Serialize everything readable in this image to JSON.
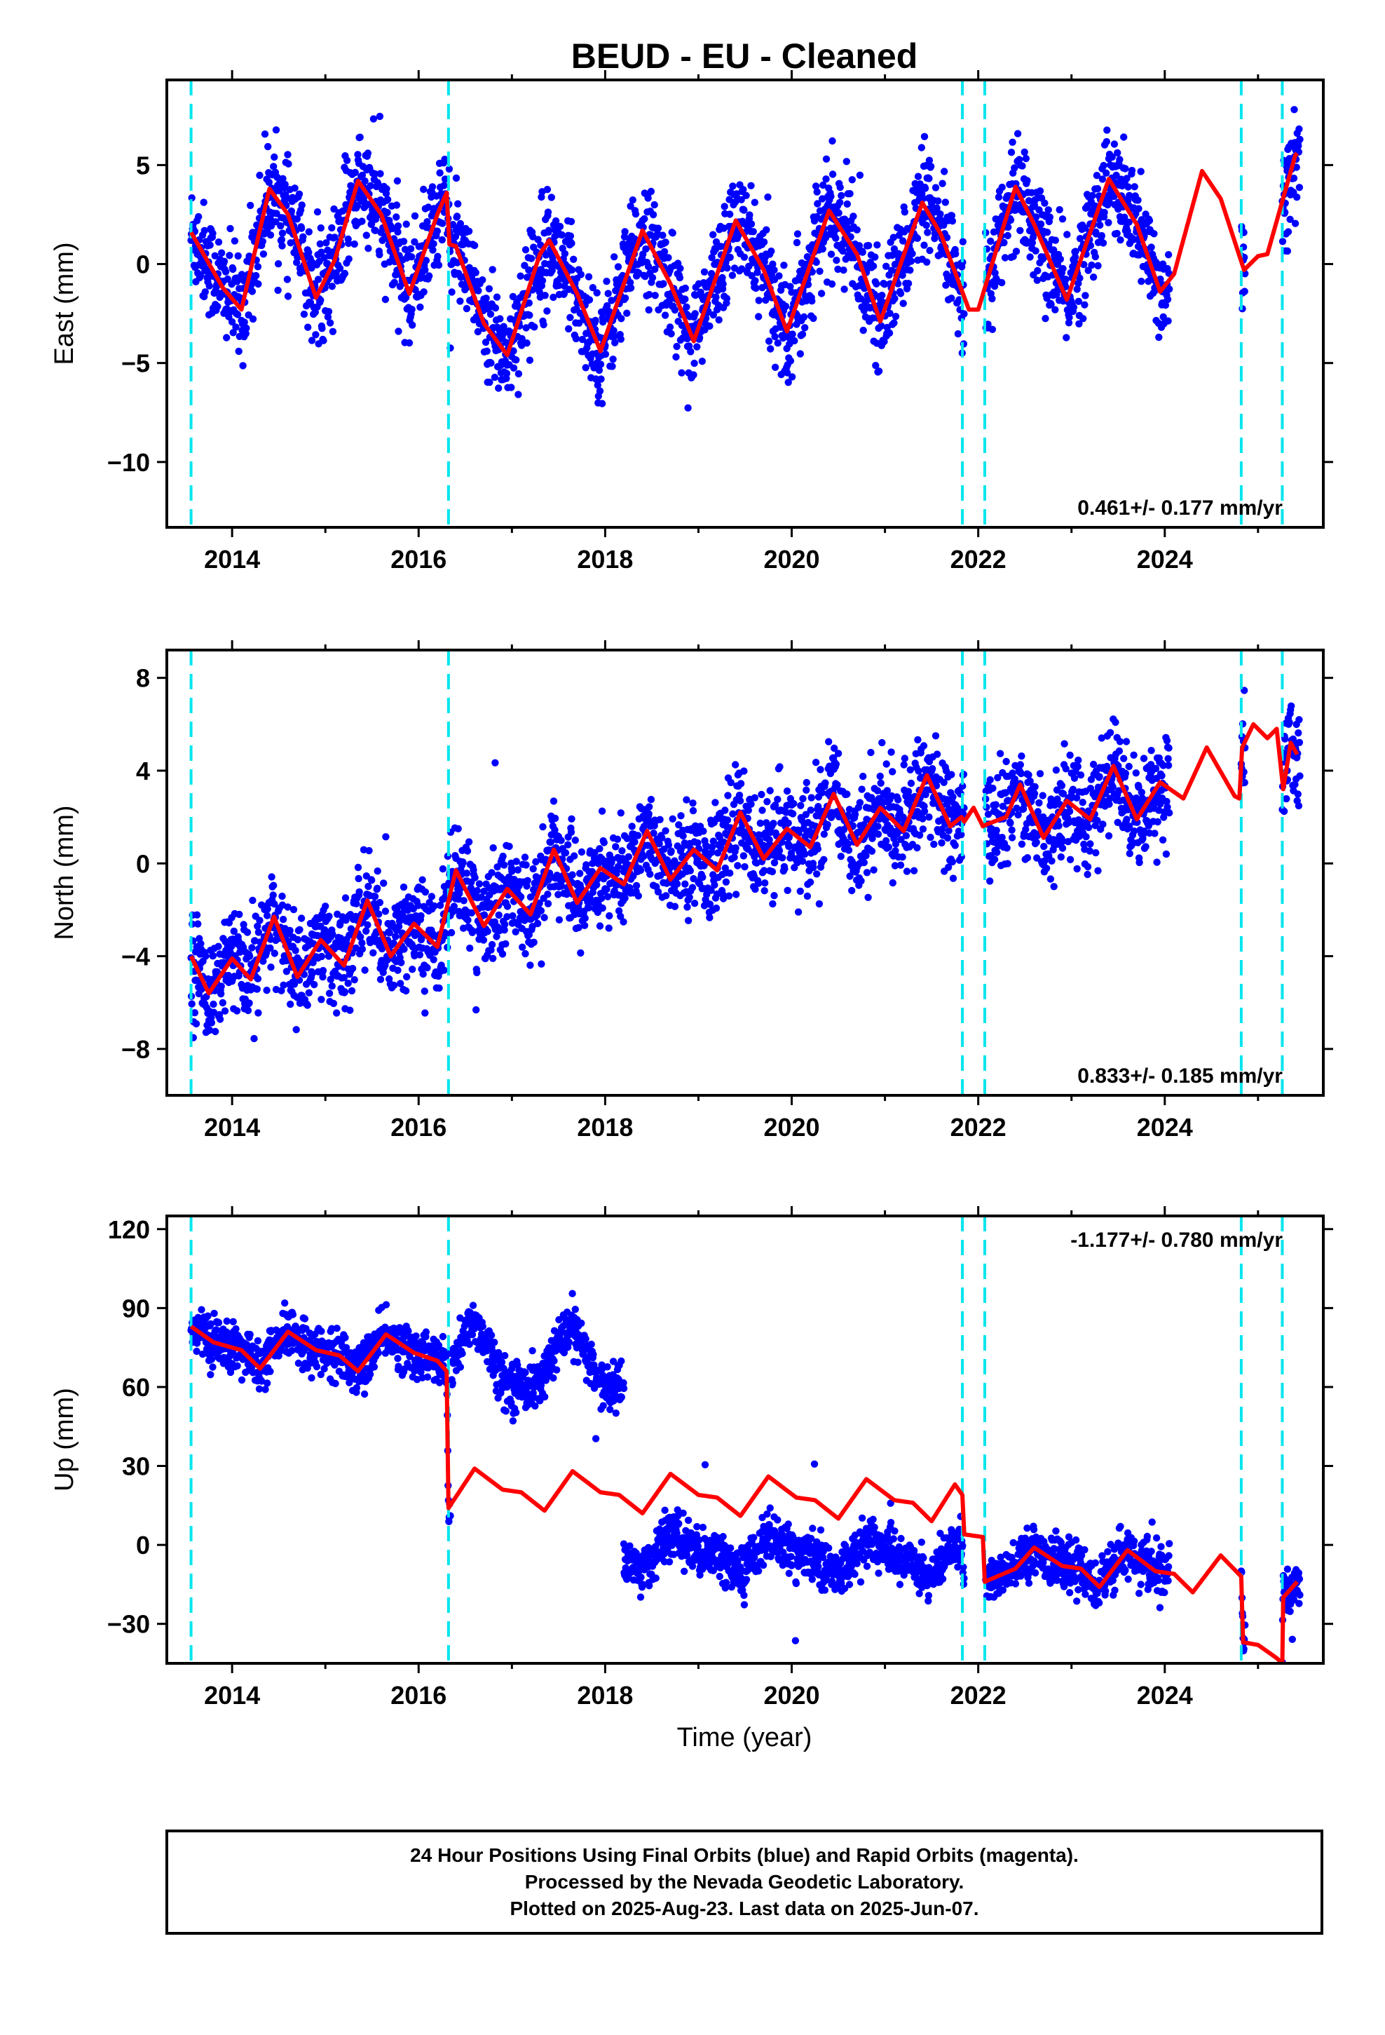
{
  "title": "BEUD  - EU - Cleaned",
  "xlabel": "Time (year)",
  "colors": {
    "points": "#0000ff",
    "model": "#ff0000",
    "offsets": "#00e5ee"
  },
  "footer": {
    "line1": "24 Hour Positions Using Final Orbits (blue) and Rapid Orbits (magenta).",
    "line2": "Processed by the Nevada Geodetic Laboratory.",
    "line3": "Plotted on 2025-Aug-23. Last data on 2025-Jun-07."
  },
  "chart_data": [
    {
      "type": "scatter",
      "ylabel": "East (mm)",
      "xlim": [
        2013.3,
        2025.7
      ],
      "ylim": [
        -13.3,
        9.3
      ],
      "xticks": [
        2014,
        2016,
        2018,
        2020,
        2022,
        2024
      ],
      "yticks": [
        -10,
        -5,
        0,
        5
      ],
      "rate_label": "0.461+/- 0.177 mm/yr",
      "offsets": [
        2013.56,
        2016.32,
        2021.83,
        2022.07,
        2024.82,
        2025.26
      ],
      "data_ranges": [
        [
          2013.56,
          2021.85
        ],
        [
          2022.08,
          2024.05
        ],
        [
          2024.82,
          2024.86
        ],
        [
          2025.26,
          2025.45
        ]
      ],
      "model": [
        [
          2013.56,
          1.6
        ],
        [
          2013.9,
          -1.2
        ],
        [
          2014.1,
          -2.3
        ],
        [
          2014.4,
          3.8
        ],
        [
          2014.6,
          2.5
        ],
        [
          2014.9,
          -1.7
        ],
        [
          2015.1,
          0.2
        ],
        [
          2015.35,
          4.2
        ],
        [
          2015.6,
          2.5
        ],
        [
          2015.9,
          -1.5
        ],
        [
          2016.2,
          2.5
        ],
        [
          2016.3,
          3.6
        ],
        [
          2016.33,
          1.0
        ],
        [
          2016.4,
          0.9
        ],
        [
          2016.7,
          -3.0
        ],
        [
          2016.95,
          -4.6
        ],
        [
          2017.3,
          0.5
        ],
        [
          2017.4,
          1.2
        ],
        [
          2017.7,
          -1.5
        ],
        [
          2017.95,
          -4.4
        ],
        [
          2018.4,
          1.7
        ],
        [
          2018.7,
          -1.0
        ],
        [
          2018.95,
          -3.9
        ],
        [
          2019.4,
          2.2
        ],
        [
          2019.7,
          -0.3
        ],
        [
          2019.95,
          -3.4
        ],
        [
          2020.4,
          2.7
        ],
        [
          2020.7,
          0.5
        ],
        [
          2020.95,
          -2.9
        ],
        [
          2021.4,
          3.1
        ],
        [
          2021.6,
          1.5
        ],
        [
          2021.9,
          -2.3
        ],
        [
          2022.0,
          -2.3
        ],
        [
          2022.4,
          3.9
        ],
        [
          2022.6,
          2.0
        ],
        [
          2022.95,
          -1.8
        ],
        [
          2023.4,
          4.3
        ],
        [
          2023.7,
          2.0
        ],
        [
          2023.95,
          -1.4
        ],
        [
          2024.1,
          -0.5
        ],
        [
          2024.4,
          4.7
        ],
        [
          2024.6,
          3.3
        ],
        [
          2024.85,
          -0.3
        ],
        [
          2025.0,
          0.4
        ],
        [
          2025.1,
          0.5
        ],
        [
          2025.4,
          5.5
        ],
        [
          2025.42,
          5.6
        ]
      ]
    },
    {
      "type": "scatter",
      "ylabel": "North (mm)",
      "xlim": [
        2013.3,
        2025.7
      ],
      "ylim": [
        -10.0,
        9.2
      ],
      "xticks": [
        2014,
        2016,
        2018,
        2020,
        2022,
        2024
      ],
      "yticks": [
        -8,
        -4,
        0,
        4,
        8
      ],
      "rate_label": "0.833+/- 0.185 mm/yr",
      "offsets": [
        2013.56,
        2016.32,
        2021.83,
        2022.07,
        2024.82,
        2025.26
      ],
      "data_ranges": [
        [
          2013.56,
          2021.85
        ],
        [
          2022.08,
          2024.05
        ],
        [
          2024.82,
          2024.86
        ],
        [
          2025.26,
          2025.45
        ]
      ],
      "model": [
        [
          2013.56,
          -4.0
        ],
        [
          2013.75,
          -5.6
        ],
        [
          2014.0,
          -4.1
        ],
        [
          2014.2,
          -5.0
        ],
        [
          2014.45,
          -2.3
        ],
        [
          2014.7,
          -4.9
        ],
        [
          2014.95,
          -3.3
        ],
        [
          2015.2,
          -4.4
        ],
        [
          2015.45,
          -1.6
        ],
        [
          2015.7,
          -4.0
        ],
        [
          2015.95,
          -2.6
        ],
        [
          2016.2,
          -3.6
        ],
        [
          2016.4,
          -0.3
        ],
        [
          2016.7,
          -2.7
        ],
        [
          2016.95,
          -1.1
        ],
        [
          2017.2,
          -2.2
        ],
        [
          2017.45,
          0.6
        ],
        [
          2017.7,
          -1.7
        ],
        [
          2017.95,
          -0.2
        ],
        [
          2018.2,
          -0.9
        ],
        [
          2018.45,
          1.4
        ],
        [
          2018.7,
          -0.7
        ],
        [
          2018.95,
          0.6
        ],
        [
          2019.2,
          -0.3
        ],
        [
          2019.45,
          2.2
        ],
        [
          2019.7,
          0.2
        ],
        [
          2019.95,
          1.5
        ],
        [
          2020.2,
          0.7
        ],
        [
          2020.45,
          3.0
        ],
        [
          2020.7,
          0.8
        ],
        [
          2020.95,
          2.4
        ],
        [
          2021.2,
          1.4
        ],
        [
          2021.45,
          3.8
        ],
        [
          2021.7,
          1.6
        ],
        [
          2021.82,
          2.0
        ],
        [
          2021.85,
          1.8
        ],
        [
          2021.95,
          2.4
        ],
        [
          2022.05,
          1.6
        ],
        [
          2022.1,
          1.7
        ],
        [
          2022.3,
          2.0
        ],
        [
          2022.45,
          3.4
        ],
        [
          2022.7,
          1.1
        ],
        [
          2022.95,
          2.7
        ],
        [
          2023.2,
          1.9
        ],
        [
          2023.45,
          4.2
        ],
        [
          2023.7,
          1.9
        ],
        [
          2023.95,
          3.5
        ],
        [
          2024.2,
          2.8
        ],
        [
          2024.45,
          5.0
        ],
        [
          2024.75,
          2.9
        ],
        [
          2024.8,
          2.8
        ],
        [
          2024.83,
          5.0
        ],
        [
          2024.95,
          6.0
        ],
        [
          2025.1,
          5.4
        ],
        [
          2025.2,
          5.8
        ],
        [
          2025.27,
          3.2
        ],
        [
          2025.35,
          5.2
        ],
        [
          2025.42,
          4.7
        ]
      ]
    },
    {
      "type": "scatter",
      "ylabel": "Up (mm)",
      "xlim": [
        2013.3,
        2025.7
      ],
      "ylim": [
        -45,
        125
      ],
      "xticks": [
        2014,
        2016,
        2018,
        2020,
        2022,
        2024
      ],
      "yticks": [
        -30,
        0,
        30,
        60,
        90,
        120
      ],
      "rate_label": "-1.177+/- 0.780 mm/yr",
      "offsets": [
        2013.56,
        2016.32,
        2021.83,
        2022.07,
        2024.82,
        2025.26
      ],
      "data_ranges": [
        [
          2013.56,
          2018.2
        ],
        [
          2018.2,
          2021.85
        ],
        [
          2022.08,
          2024.05
        ],
        [
          2024.82,
          2024.86
        ],
        [
          2025.26,
          2025.45
        ]
      ],
      "model": [
        [
          2013.56,
          83
        ],
        [
          2013.8,
          77
        ],
        [
          2014.1,
          74
        ],
        [
          2014.3,
          67
        ],
        [
          2014.6,
          81
        ],
        [
          2014.9,
          74
        ],
        [
          2015.15,
          72
        ],
        [
          2015.35,
          66
        ],
        [
          2015.65,
          80
        ],
        [
          2015.95,
          73
        ],
        [
          2016.2,
          70
        ],
        [
          2016.3,
          66
        ],
        [
          2016.32,
          14
        ],
        [
          2016.6,
          29
        ],
        [
          2016.9,
          21
        ],
        [
          2017.1,
          20
        ],
        [
          2017.35,
          13
        ],
        [
          2017.65,
          28
        ],
        [
          2017.95,
          20
        ],
        [
          2018.15,
          19
        ],
        [
          2018.4,
          12
        ],
        [
          2018.7,
          27
        ],
        [
          2019.0,
          19
        ],
        [
          2019.2,
          18
        ],
        [
          2019.45,
          11
        ],
        [
          2019.75,
          26
        ],
        [
          2020.05,
          18
        ],
        [
          2020.25,
          17
        ],
        [
          2020.5,
          10
        ],
        [
          2020.8,
          25
        ],
        [
          2021.1,
          17
        ],
        [
          2021.3,
          16
        ],
        [
          2021.5,
          9
        ],
        [
          2021.75,
          23
        ],
        [
          2021.83,
          19
        ],
        [
          2021.85,
          4
        ],
        [
          2022.05,
          3
        ],
        [
          2022.07,
          -14
        ],
        [
          2022.4,
          -9
        ],
        [
          2022.6,
          -1
        ],
        [
          2022.9,
          -8
        ],
        [
          2023.1,
          -9
        ],
        [
          2023.3,
          -16
        ],
        [
          2023.6,
          -2
        ],
        [
          2023.9,
          -10
        ],
        [
          2024.1,
          -11
        ],
        [
          2024.3,
          -18
        ],
        [
          2024.6,
          -4
        ],
        [
          2024.82,
          -12
        ],
        [
          2024.84,
          -37
        ],
        [
          2025.0,
          -38
        ],
        [
          2025.2,
          -43
        ],
        [
          2025.26,
          -45
        ],
        [
          2025.27,
          -20
        ],
        [
          2025.42,
          -14
        ]
      ]
    }
  ]
}
